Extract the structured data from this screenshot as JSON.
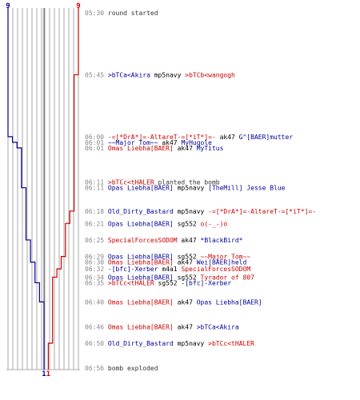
{
  "colors": {
    "t": "#cc0000",
    "ct": "#000099",
    "neutral": "#333333",
    "time": "#888888",
    "weapon": "#000000",
    "grid": "#aaaaaa",
    "grid_dark": "#555555"
  },
  "teams": {
    "ct": {
      "start_count": "9",
      "end_count": "1"
    },
    "t": {
      "start_count": "9",
      "end_count": "1"
    }
  },
  "events": [
    {
      "time": "05:30",
      "parts": [
        {
          "text": "round started",
          "c": "neutral"
        }
      ]
    },
    {
      "time": "05:45",
      "parts": [
        {
          "text": ">bTCa<Akira",
          "c": "ct"
        },
        {
          "text": " mp5navy ",
          "c": "weapon"
        },
        {
          "text": ">bTCb<wangogh",
          "c": "t"
        }
      ]
    },
    {
      "time": "06:00",
      "parts": [
        {
          "text": "-=[*DrA*]=-AltareT-=[*iT*]=-",
          "c": "t"
        },
        {
          "text": " ak47 ",
          "c": "weapon"
        },
        {
          "text": "G^[BAER]mutter",
          "c": "ct"
        }
      ]
    },
    {
      "time": "06:01",
      "parts": [
        {
          "text": "~~Major Tom~~",
          "c": "ct"
        },
        {
          "text": " ak47 ",
          "c": "weapon"
        },
        {
          "text": "MyHugole",
          "c": "ct"
        }
      ]
    },
    {
      "time": "06:01",
      "parts": [
        {
          "text": "Omas Liebha[BAER]",
          "c": "t"
        },
        {
          "text": " ak47 ",
          "c": "weapon"
        },
        {
          "text": "MyTitus",
          "c": "ct"
        }
      ]
    },
    {
      "time": "06:11",
      "parts": [
        {
          "text": ">bTCc<tHALER",
          "c": "t"
        },
        {
          "text": " planted the bomb",
          "c": "neutral"
        }
      ]
    },
    {
      "time": "06:11",
      "parts": [
        {
          "text": "Opas Liebha[BAER]",
          "c": "ct"
        },
        {
          "text": " mp5navy ",
          "c": "weapon"
        },
        {
          "text": "[TheMill] Jesse Blue",
          "c": "ct"
        }
      ]
    },
    {
      "time": "06:18",
      "parts": [
        {
          "text": "Old_Dirty_Bastard",
          "c": "ct"
        },
        {
          "text": " mp5navy ",
          "c": "weapon"
        },
        {
          "text": "-=[*DrA*]=-AltareT-=[*iT*]=-",
          "c": "t"
        }
      ]
    },
    {
      "time": "06:21",
      "parts": [
        {
          "text": "Opas Liebha[BAER]",
          "c": "ct"
        },
        {
          "text": " sg552 ",
          "c": "weapon"
        },
        {
          "text": "o(-_-)o",
          "c": "t"
        }
      ]
    },
    {
      "time": "06:25",
      "parts": [
        {
          "text": "SpecialForcesSODOM",
          "c": "t"
        },
        {
          "text": " ak47 ",
          "c": "weapon"
        },
        {
          "text": "*BlackBird*",
          "c": "ct"
        }
      ]
    },
    {
      "time": "06:29",
      "parts": [
        {
          "text": "Opas Liebha[BAER]",
          "c": "ct"
        },
        {
          "text": " sg552 ",
          "c": "weapon"
        },
        {
          "text": "~~Major Tom~~",
          "c": "t"
        }
      ]
    },
    {
      "time": "06:30",
      "parts": [
        {
          "text": "Omas Liebha[BAER]",
          "c": "t"
        },
        {
          "text": " ak47 ",
          "c": "weapon"
        },
        {
          "text": "Wei[BAER]held",
          "c": "ct"
        }
      ]
    },
    {
      "time": "06:32",
      "parts": [
        {
          "text": "-[bfc]-Xerber",
          "c": "ct"
        },
        {
          "text": " m4a1 ",
          "c": "weapon"
        },
        {
          "text": "SpecialForcesSODOM",
          "c": "t"
        }
      ]
    },
    {
      "time": "06:34",
      "parts": [
        {
          "text": "Opas Liebha[BAER]",
          "c": "ct"
        },
        {
          "text": " sg552 ",
          "c": "weapon"
        },
        {
          "text": "Tyrador of 807",
          "c": "t"
        }
      ]
    },
    {
      "time": "06:35",
      "parts": [
        {
          "text": ">bTCc<tHALER",
          "c": "t"
        },
        {
          "text": " sg552 ",
          "c": "weapon"
        },
        {
          "text": "-[bfc]-Xerber",
          "c": "ct"
        }
      ]
    },
    {
      "time": "06:40",
      "parts": [
        {
          "text": "Omas Liebha[BAER]",
          "c": "t"
        },
        {
          "text": " ak47 ",
          "c": "weapon"
        },
        {
          "text": "Opas Liebha[BAER]",
          "c": "ct"
        }
      ]
    },
    {
      "time": "06:46",
      "parts": [
        {
          "text": "Omas Liebha[BAER]",
          "c": "t"
        },
        {
          "text": " ak47 ",
          "c": "weapon"
        },
        {
          "text": ">bTCa<Akira",
          "c": "ct"
        }
      ]
    },
    {
      "time": "06:50",
      "parts": [
        {
          "text": "Old_Dirty_Bastard",
          "c": "ct"
        },
        {
          "text": " mp5navy ",
          "c": "weapon"
        },
        {
          "text": ">bTCc<tHALER",
          "c": "t"
        }
      ]
    },
    {
      "time": "06:56",
      "parts": [
        {
          "text": "bomb exploded",
          "c": "neutral"
        }
      ]
    }
  ]
}
